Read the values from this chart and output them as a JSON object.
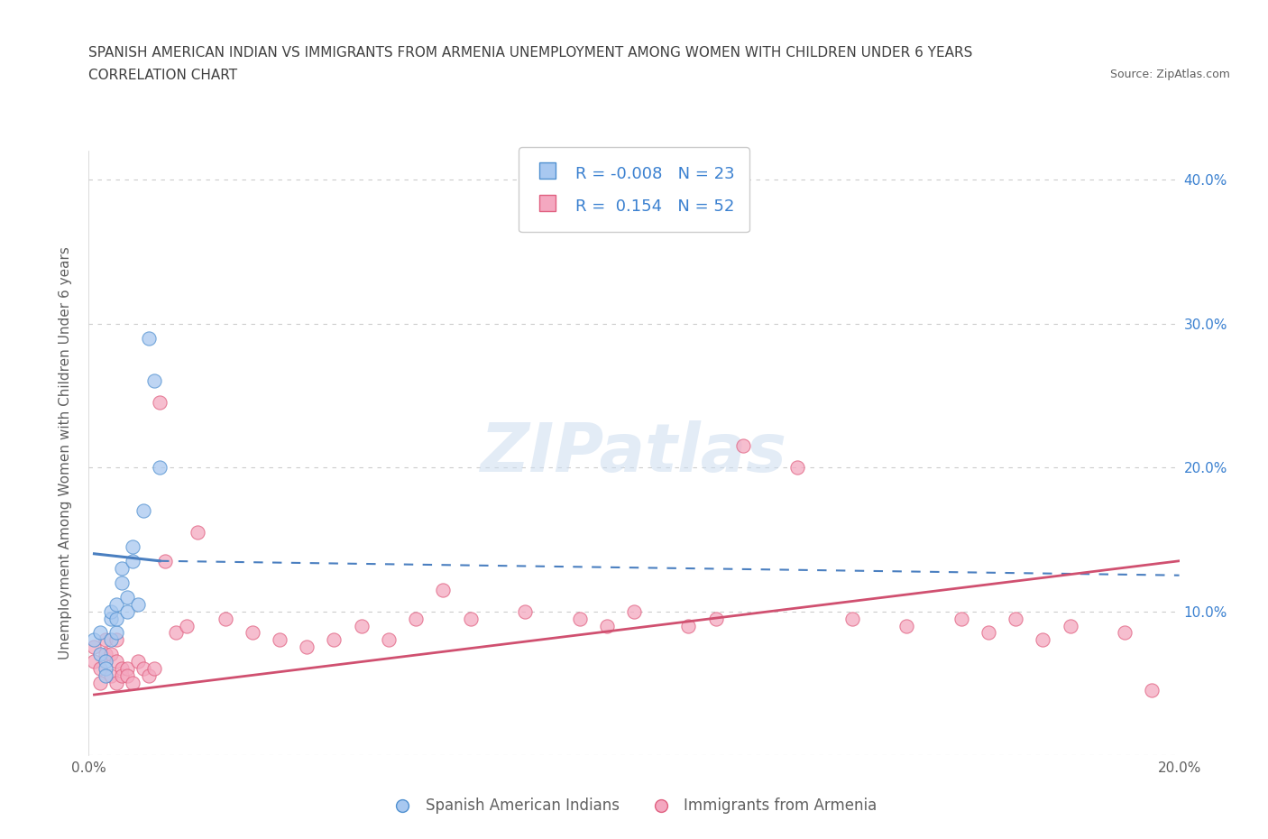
{
  "title_line1": "SPANISH AMERICAN INDIAN VS IMMIGRANTS FROM ARMENIA UNEMPLOYMENT AMONG WOMEN WITH CHILDREN UNDER 6 YEARS",
  "title_line2": "CORRELATION CHART",
  "source": "Source: ZipAtlas.com",
  "ylabel": "Unemployment Among Women with Children Under 6 years",
  "watermark": "ZIPatlas",
  "xlim": [
    0.0,
    0.2
  ],
  "ylim": [
    0.0,
    0.42
  ],
  "y_ticks": [
    0.0,
    0.1,
    0.2,
    0.3,
    0.4
  ],
  "blue_R": "-0.008",
  "blue_N": "23",
  "pink_R": "0.154",
  "pink_N": "52",
  "legend_label_blue": "Spanish American Indians",
  "legend_label_pink": "Immigrants from Armenia",
  "blue_color": "#a8c8f0",
  "pink_color": "#f4a8c0",
  "blue_edge_color": "#5090d0",
  "pink_edge_color": "#e06080",
  "blue_line_color": "#4a7fc0",
  "pink_line_color": "#d05070",
  "blue_scatter_x": [
    0.001,
    0.002,
    0.002,
    0.003,
    0.003,
    0.003,
    0.004,
    0.004,
    0.004,
    0.005,
    0.005,
    0.005,
    0.006,
    0.006,
    0.007,
    0.007,
    0.008,
    0.008,
    0.009,
    0.01,
    0.011,
    0.012,
    0.013
  ],
  "blue_scatter_y": [
    0.08,
    0.07,
    0.085,
    0.065,
    0.06,
    0.055,
    0.08,
    0.095,
    0.1,
    0.085,
    0.095,
    0.105,
    0.12,
    0.13,
    0.1,
    0.11,
    0.135,
    0.145,
    0.105,
    0.17,
    0.29,
    0.26,
    0.2
  ],
  "pink_scatter_x": [
    0.001,
    0.001,
    0.002,
    0.002,
    0.003,
    0.003,
    0.004,
    0.004,
    0.005,
    0.005,
    0.005,
    0.006,
    0.006,
    0.007,
    0.007,
    0.008,
    0.009,
    0.01,
    0.011,
    0.012,
    0.013,
    0.014,
    0.016,
    0.018,
    0.02,
    0.025,
    0.03,
    0.035,
    0.04,
    0.045,
    0.05,
    0.055,
    0.06,
    0.065,
    0.07,
    0.08,
    0.09,
    0.095,
    0.1,
    0.11,
    0.115,
    0.12,
    0.13,
    0.14,
    0.15,
    0.16,
    0.165,
    0.17,
    0.175,
    0.18,
    0.19,
    0.195
  ],
  "pink_scatter_y": [
    0.065,
    0.075,
    0.05,
    0.06,
    0.07,
    0.08,
    0.055,
    0.07,
    0.05,
    0.065,
    0.08,
    0.06,
    0.055,
    0.06,
    0.055,
    0.05,
    0.065,
    0.06,
    0.055,
    0.06,
    0.245,
    0.135,
    0.085,
    0.09,
    0.155,
    0.095,
    0.085,
    0.08,
    0.075,
    0.08,
    0.09,
    0.08,
    0.095,
    0.115,
    0.095,
    0.1,
    0.095,
    0.09,
    0.1,
    0.09,
    0.095,
    0.215,
    0.2,
    0.095,
    0.09,
    0.095,
    0.085,
    0.095,
    0.08,
    0.09,
    0.085,
    0.045
  ],
  "blue_solid_trend_x": [
    0.001,
    0.013
  ],
  "blue_solid_trend_y": [
    0.14,
    0.135
  ],
  "blue_dash_trend_x": [
    0.013,
    0.2
  ],
  "blue_dash_trend_y": [
    0.135,
    0.125
  ],
  "pink_trend_x": [
    0.001,
    0.2
  ],
  "pink_trend_y": [
    0.042,
    0.135
  ],
  "bg_color": "#ffffff",
  "dot_grid_color": "#cccccc",
  "title_color": "#404040",
  "axis_color": "#606060",
  "right_axis_label_color": "#3a80d0"
}
